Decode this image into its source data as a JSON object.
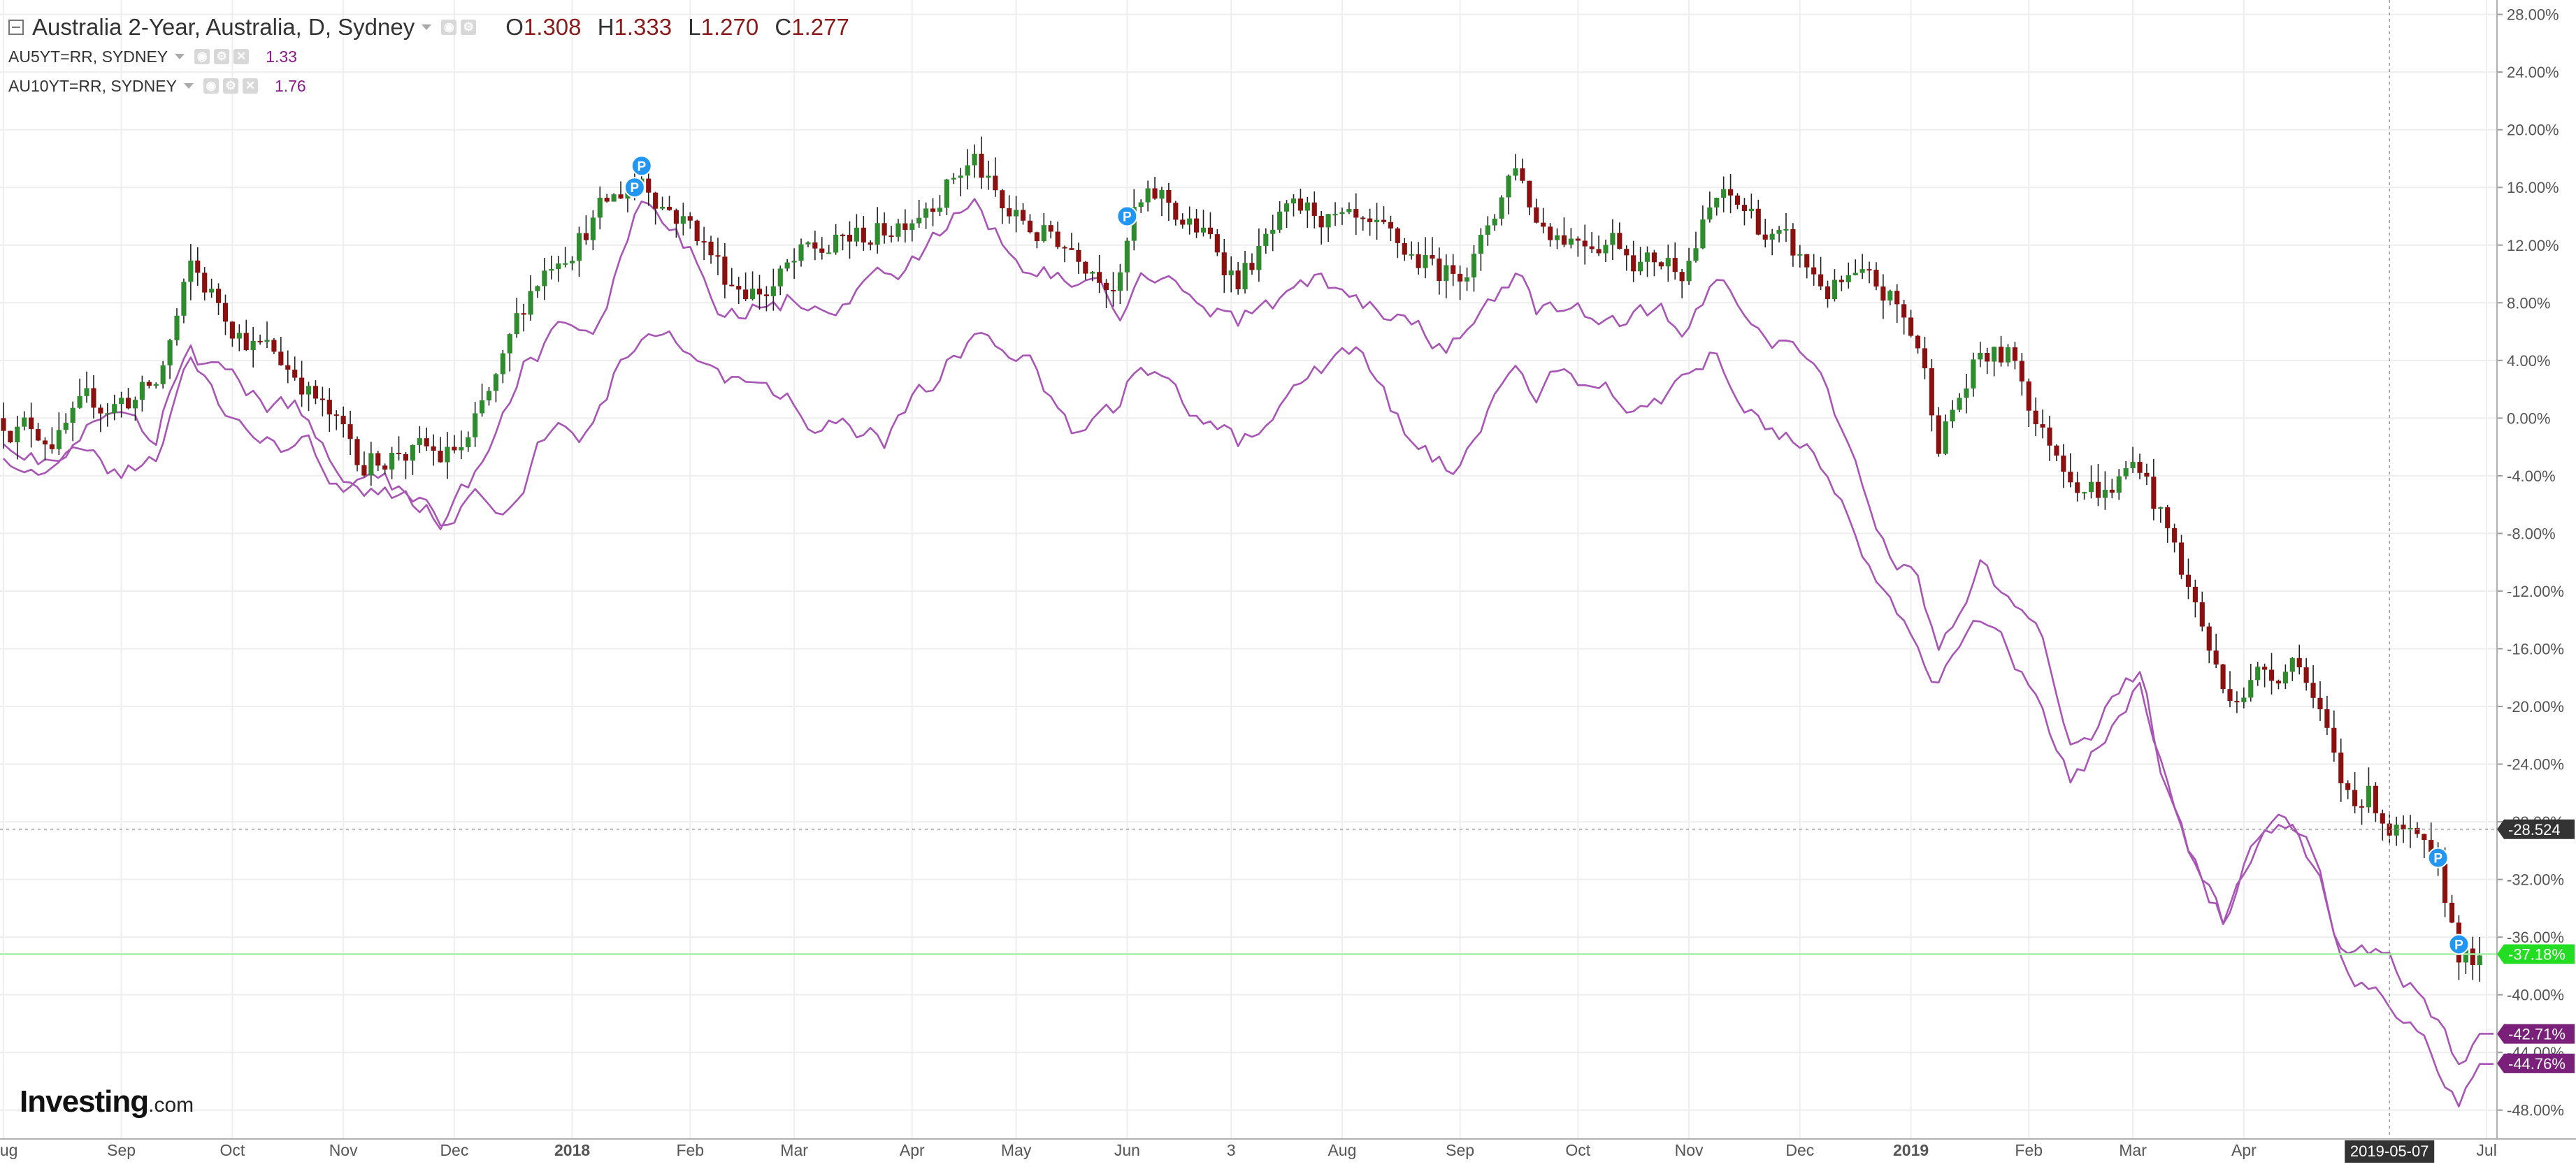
{
  "legend": {
    "main": {
      "title": "Australia 2-Year, Australia, D, Sydney",
      "o_label": "O",
      "o": "1.308",
      "h_label": "H",
      "h": "1.333",
      "l_label": "L",
      "l": "1.270",
      "c_label": "C",
      "c": "1.277"
    },
    "series": [
      {
        "symbol": "AU5YT=RR, SYDNEY",
        "value": "1.33"
      },
      {
        "symbol": "AU10YT=RR, SYDNEY",
        "value": "1.76"
      }
    ]
  },
  "logo": {
    "brand": "Investing",
    "domain": ".com"
  },
  "colors": {
    "up": "#2e8b2e",
    "down": "#8b1010",
    "line": "#a855b5",
    "grid": "#eeeeee",
    "axis_text": "#555555",
    "marker": "#2196f3",
    "current": "#22dd22",
    "crosshair": "#333333",
    "series_tag": "#7a1f7a"
  },
  "chart_data": {
    "type": "candlestick",
    "y_unit": "%",
    "ylim": [
      -50,
      29
    ],
    "y_ticks": [
      "28.00%",
      "24.00%",
      "20.00%",
      "16.00%",
      "12.00%",
      "8.00%",
      "4.00%",
      "0.00%",
      "-4.00%",
      "-8.00%",
      "-12.00%",
      "-16.00%",
      "-20.00%",
      "-24.00%",
      "-28.00%",
      "-32.00%",
      "-36.00%",
      "-40.00%",
      "-44.00%",
      "-48.00%"
    ],
    "x_labels": [
      "Aug",
      "Sep",
      "Oct",
      "Nov",
      "Dec",
      "2018",
      "Feb",
      "Mar",
      "Apr",
      "May",
      "Jun",
      "3",
      "Aug",
      "Sep",
      "Oct",
      "Nov",
      "Dec",
      "2019",
      "Feb",
      "Mar",
      "Apr",
      "Jul"
    ],
    "x_label_idx": [
      0,
      17,
      33,
      49,
      65,
      82,
      99,
      114,
      131,
      146,
      162,
      177,
      193,
      210,
      227,
      243,
      259,
      275,
      292,
      307,
      323,
      358
    ],
    "n_bars": 360,
    "grid": true,
    "price_tags": [
      {
        "label": "-28.524",
        "value": -28.52,
        "kind": "crosshair"
      },
      {
        "label": "-37.18%",
        "value": -37.18,
        "kind": "current"
      },
      {
        "label": "-42.71%",
        "value": -42.71,
        "kind": "series"
      },
      {
        "label": "-44.76%",
        "value": -44.76,
        "kind": "series"
      }
    ],
    "date_tag": {
      "label": "2019-05-07",
      "index": 344
    },
    "candle_anchors": [
      [
        0,
        0
      ],
      [
        8,
        -1
      ],
      [
        15,
        1
      ],
      [
        22,
        2
      ],
      [
        27,
        10
      ],
      [
        31,
        8
      ],
      [
        37,
        5
      ],
      [
        43,
        3
      ],
      [
        48,
        -1
      ],
      [
        52,
        -3
      ],
      [
        57,
        -2
      ],
      [
        63,
        -3
      ],
      [
        67,
        -2
      ],
      [
        72,
        3
      ],
      [
        76,
        9
      ],
      [
        80,
        12
      ],
      [
        85,
        14
      ],
      [
        88,
        15
      ],
      [
        92,
        17
      ],
      [
        96,
        15
      ],
      [
        100,
        13
      ],
      [
        104,
        10
      ],
      [
        110,
        9
      ],
      [
        116,
        11
      ],
      [
        121,
        12
      ],
      [
        127,
        13
      ],
      [
        134,
        16
      ],
      [
        140,
        18
      ],
      [
        144,
        14
      ],
      [
        148,
        13
      ],
      [
        155,
        12
      ],
      [
        161,
        10
      ],
      [
        163,
        14
      ],
      [
        167,
        15
      ],
      [
        172,
        13
      ],
      [
        178,
        10
      ],
      [
        184,
        13
      ],
      [
        190,
        14
      ],
      [
        196,
        12
      ],
      [
        203,
        11
      ],
      [
        208,
        10
      ],
      [
        213,
        12
      ],
      [
        218,
        18
      ],
      [
        221,
        14
      ],
      [
        226,
        13
      ],
      [
        232,
        13
      ],
      [
        237,
        11
      ],
      [
        242,
        11
      ],
      [
        247,
        15
      ],
      [
        252,
        14
      ],
      [
        258,
        11
      ],
      [
        263,
        9
      ],
      [
        267,
        9
      ],
      [
        272,
        8
      ],
      [
        276,
        5
      ],
      [
        279,
        -1
      ],
      [
        285,
        4
      ],
      [
        290,
        4
      ],
      [
        294,
        -1
      ],
      [
        298,
        -3
      ],
      [
        303,
        -5
      ],
      [
        308,
        -3
      ],
      [
        312,
        -8
      ],
      [
        316,
        -13
      ],
      [
        320,
        -19
      ],
      [
        324,
        -18
      ],
      [
        328,
        -17
      ],
      [
        331,
        -16
      ],
      [
        334,
        -21
      ],
      [
        337,
        -26
      ],
      [
        341,
        -26
      ],
      [
        344,
        -28
      ],
      [
        346,
        -29
      ],
      [
        349,
        -31
      ],
      [
        352,
        -34
      ],
      [
        354,
        -37
      ],
      [
        357,
        -38
      ]
    ],
    "series": [
      {
        "name": "AU5YT=RR, SYDNEY",
        "last": -42.71,
        "anchors": [
          [
            0,
            -1
          ],
          [
            8,
            -3
          ],
          [
            15,
            0
          ],
          [
            22,
            -2
          ],
          [
            27,
            6
          ],
          [
            31,
            3
          ],
          [
            37,
            1
          ],
          [
            43,
            0
          ],
          [
            48,
            -4
          ],
          [
            52,
            -4
          ],
          [
            57,
            -5
          ],
          [
            63,
            -7
          ],
          [
            67,
            -5
          ],
          [
            72,
            -1
          ],
          [
            76,
            4
          ],
          [
            80,
            6
          ],
          [
            85,
            5
          ],
          [
            88,
            9
          ],
          [
            92,
            14
          ],
          [
            96,
            12
          ],
          [
            100,
            10
          ],
          [
            104,
            8
          ],
          [
            110,
            8
          ],
          [
            116,
            9
          ],
          [
            121,
            9
          ],
          [
            127,
            10
          ],
          [
            134,
            12
          ],
          [
            140,
            15
          ],
          [
            144,
            12
          ],
          [
            148,
            11
          ],
          [
            155,
            10
          ],
          [
            161,
            8
          ],
          [
            163,
            10
          ],
          [
            167,
            11
          ],
          [
            172,
            9
          ],
          [
            178,
            7
          ],
          [
            184,
            8
          ],
          [
            190,
            9
          ],
          [
            196,
            8
          ],
          [
            203,
            6
          ],
          [
            208,
            4
          ],
          [
            213,
            7
          ],
          [
            218,
            9
          ],
          [
            221,
            7
          ],
          [
            226,
            8
          ],
          [
            232,
            6
          ],
          [
            237,
            7
          ],
          [
            242,
            6
          ],
          [
            247,
            9
          ],
          [
            252,
            8
          ],
          [
            258,
            5
          ],
          [
            263,
            2
          ],
          [
            267,
            -3
          ],
          [
            272,
            -9
          ],
          [
            276,
            -11
          ],
          [
            279,
            -16
          ],
          [
            285,
            -10
          ],
          [
            290,
            -14
          ],
          [
            294,
            -17
          ],
          [
            298,
            -22
          ],
          [
            303,
            -20
          ],
          [
            308,
            -18
          ],
          [
            312,
            -26
          ],
          [
            316,
            -30
          ],
          [
            320,
            -34
          ],
          [
            324,
            -30
          ],
          [
            328,
            -27
          ],
          [
            331,
            -28
          ],
          [
            334,
            -30
          ],
          [
            337,
            -36
          ],
          [
            341,
            -37
          ],
          [
            344,
            -38
          ],
          [
            346,
            -40
          ],
          [
            349,
            -41
          ],
          [
            352,
            -43
          ],
          [
            354,
            -45
          ],
          [
            357,
            -42.7
          ]
        ]
      },
      {
        "name": "AU10YT=RR, SYDNEY",
        "last": -44.76,
        "anchors": [
          [
            0,
            -2
          ],
          [
            8,
            -3
          ],
          [
            15,
            -4
          ],
          [
            22,
            -3
          ],
          [
            27,
            4
          ],
          [
            31,
            1
          ],
          [
            37,
            -1
          ],
          [
            43,
            -2
          ],
          [
            48,
            -4
          ],
          [
            52,
            -5
          ],
          [
            57,
            -6
          ],
          [
            63,
            -7
          ],
          [
            67,
            -5
          ],
          [
            72,
            -5
          ],
          [
            76,
            -2
          ],
          [
            80,
            1
          ],
          [
            85,
            0
          ],
          [
            88,
            3
          ],
          [
            92,
            6
          ],
          [
            96,
            5
          ],
          [
            100,
            5
          ],
          [
            104,
            3
          ],
          [
            110,
            1
          ],
          [
            116,
            0
          ],
          [
            121,
            -1
          ],
          [
            127,
            -2
          ],
          [
            134,
            2
          ],
          [
            140,
            6
          ],
          [
            144,
            4
          ],
          [
            148,
            3
          ],
          [
            155,
            -1
          ],
          [
            161,
            0
          ],
          [
            163,
            3
          ],
          [
            167,
            2
          ],
          [
            172,
            0
          ],
          [
            178,
            -2
          ],
          [
            184,
            0
          ],
          [
            190,
            3
          ],
          [
            196,
            4
          ],
          [
            203,
            -2
          ],
          [
            208,
            -4
          ],
          [
            213,
            -2
          ],
          [
            218,
            3
          ],
          [
            221,
            1
          ],
          [
            226,
            3
          ],
          [
            232,
            2
          ],
          [
            237,
            1
          ],
          [
            242,
            3
          ],
          [
            247,
            5
          ],
          [
            252,
            2
          ],
          [
            258,
            -1
          ],
          [
            263,
            -3
          ],
          [
            267,
            -8
          ],
          [
            272,
            -13
          ],
          [
            276,
            -15
          ],
          [
            279,
            -18
          ],
          [
            285,
            -14
          ],
          [
            290,
            -18
          ],
          [
            294,
            -20
          ],
          [
            298,
            -24
          ],
          [
            303,
            -22
          ],
          [
            308,
            -19
          ],
          [
            312,
            -25
          ],
          [
            316,
            -30
          ],
          [
            320,
            -35
          ],
          [
            324,
            -32
          ],
          [
            328,
            -29
          ],
          [
            331,
            -29
          ],
          [
            334,
            -32
          ],
          [
            337,
            -38
          ],
          [
            341,
            -39
          ],
          [
            344,
            -41
          ],
          [
            346,
            -42
          ],
          [
            349,
            -43
          ],
          [
            352,
            -46
          ],
          [
            354,
            -47
          ],
          [
            357,
            -44.8
          ]
        ]
      }
    ],
    "markers": [
      {
        "label": "P",
        "index": 91,
        "value": 16
      },
      {
        "label": "P",
        "index": 92,
        "value": 17.5
      },
      {
        "label": "P",
        "index": 162,
        "value": 14
      },
      {
        "label": "P",
        "index": 351,
        "value": -30.5
      },
      {
        "label": "P",
        "index": 354,
        "value": -36.5
      }
    ]
  }
}
